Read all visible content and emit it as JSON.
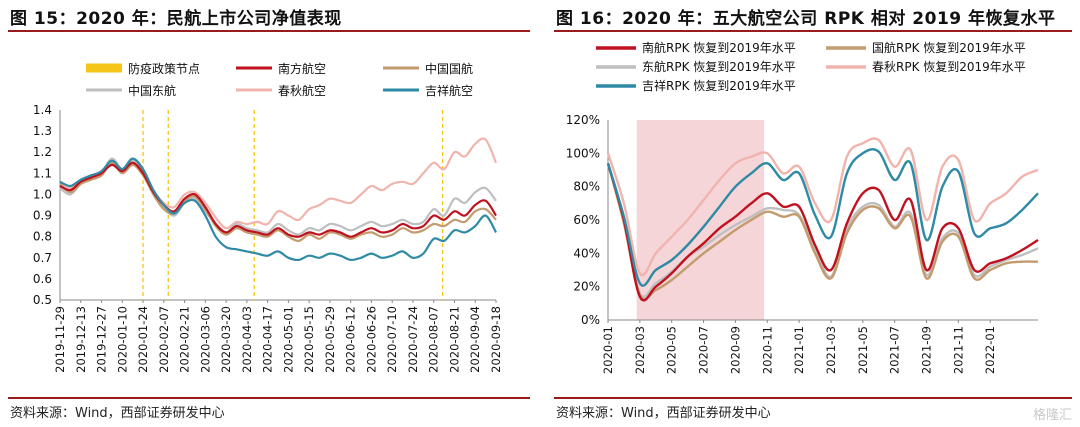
{
  "left": {
    "title": "图 15：2020 年：民航上市公司净值表现",
    "source": "资料来源：Wind，西部证券研发中心"
  },
  "right": {
    "title": "图 16：2020 年：五大航空公司 RPK 相对 2019 年恢复水平",
    "source": "资料来源：Wind，西部证券研发中心"
  },
  "watermark": "格隆汇",
  "chart_data": [
    {
      "type": "line",
      "ylim": [
        0.5,
        1.4
      ],
      "yticks": [
        "0.5",
        "0.6",
        "0.7",
        "0.8",
        "0.9",
        "1.0",
        "1.1",
        "1.2",
        "1.3",
        "1.4"
      ],
      "xticks": [
        "2019-11-29",
        "2019-12-13",
        "2019-12-27",
        "2020-01-10",
        "2020-01-24",
        "2020-02-07",
        "2020-02-21",
        "2020-03-06",
        "2020-03-20",
        "2020-04-03",
        "2020-04-17",
        "2020-05-01",
        "2020-05-15",
        "2020-05-29",
        "2020-06-12",
        "2020-06-26",
        "2020-07-10",
        "2020-07-24",
        "2020-08-07",
        "2020-08-21",
        "2020-09-04",
        "2020-09-18"
      ],
      "legend_position": "top",
      "epidemic_policy_label": "防疫政策节点",
      "epidemic_policy_color": "#f5c518",
      "epidemic_policy_nodes": [
        "2020-01-24",
        "2020-02-10",
        "2020-04-08",
        "2020-08-13"
      ],
      "series": [
        {
          "name": "南方航空",
          "color": "#c0111f",
          "values": [
            1.04,
            1.02,
            1.06,
            1.08,
            1.1,
            1.14,
            1.11,
            1.15,
            1.1,
            1.01,
            0.95,
            0.92,
            0.98,
            1.0,
            0.94,
            0.86,
            0.82,
            0.85,
            0.83,
            0.82,
            0.81,
            0.84,
            0.81,
            0.8,
            0.82,
            0.81,
            0.83,
            0.82,
            0.8,
            0.82,
            0.84,
            0.82,
            0.83,
            0.86,
            0.84,
            0.85,
            0.9,
            0.88,
            0.92,
            0.9,
            0.95,
            0.97,
            0.9
          ]
        },
        {
          "name": "中国国航",
          "color": "#c39b6e",
          "values": [
            1.05,
            1.01,
            1.05,
            1.07,
            1.09,
            1.15,
            1.1,
            1.14,
            1.09,
            1.0,
            0.93,
            0.91,
            0.97,
            0.99,
            0.93,
            0.85,
            0.81,
            0.84,
            0.82,
            0.81,
            0.8,
            0.83,
            0.8,
            0.78,
            0.81,
            0.79,
            0.82,
            0.81,
            0.79,
            0.81,
            0.82,
            0.8,
            0.81,
            0.84,
            0.82,
            0.83,
            0.86,
            0.85,
            0.88,
            0.87,
            0.92,
            0.93,
            0.88
          ]
        },
        {
          "name": "中国东航",
          "color": "#bfbfbf",
          "values": [
            1.03,
            1.0,
            1.05,
            1.08,
            1.1,
            1.17,
            1.12,
            1.16,
            1.1,
            1.02,
            0.94,
            0.9,
            0.96,
            0.98,
            0.92,
            0.86,
            0.82,
            0.86,
            0.84,
            0.83,
            0.82,
            0.86,
            0.83,
            0.81,
            0.84,
            0.83,
            0.86,
            0.85,
            0.83,
            0.85,
            0.87,
            0.85,
            0.86,
            0.88,
            0.86,
            0.87,
            0.93,
            0.9,
            0.98,
            0.96,
            1.01,
            1.03,
            0.97
          ]
        },
        {
          "name": "春秋航空",
          "color": "#f0b4ad",
          "values": [
            1.05,
            1.03,
            1.07,
            1.09,
            1.11,
            1.16,
            1.12,
            1.16,
            1.11,
            1.02,
            0.96,
            0.94,
            1.0,
            1.01,
            0.96,
            0.89,
            0.84,
            0.87,
            0.86,
            0.87,
            0.86,
            0.92,
            0.9,
            0.88,
            0.93,
            0.95,
            0.98,
            0.97,
            0.96,
            1.0,
            1.04,
            1.02,
            1.05,
            1.06,
            1.05,
            1.1,
            1.15,
            1.12,
            1.2,
            1.18,
            1.24,
            1.26,
            1.15
          ]
        },
        {
          "name": "吉祥航空",
          "color": "#2f8aa5",
          "values": [
            1.06,
            1.04,
            1.07,
            1.09,
            1.11,
            1.16,
            1.12,
            1.17,
            1.12,
            1.02,
            0.95,
            0.91,
            0.96,
            0.97,
            0.9,
            0.8,
            0.75,
            0.74,
            0.73,
            0.72,
            0.71,
            0.73,
            0.7,
            0.69,
            0.71,
            0.7,
            0.72,
            0.71,
            0.69,
            0.7,
            0.72,
            0.7,
            0.71,
            0.73,
            0.7,
            0.72,
            0.79,
            0.78,
            0.83,
            0.82,
            0.85,
            0.9,
            0.82
          ]
        }
      ]
    },
    {
      "type": "line",
      "ylim": [
        0,
        120
      ],
      "yticks": [
        "0%",
        "20%",
        "40%",
        "60%",
        "80%",
        "100%",
        "120%"
      ],
      "xticks": [
        "2020-01",
        "2020-03",
        "2020-05",
        "2020-07",
        "2020-09",
        "2020-11",
        "2021-01",
        "2021-03",
        "2021-05",
        "2021-07",
        "2021-09",
        "2021-11",
        "2022-01"
      ],
      "x_months_total": 27,
      "shade_months": [
        1.8,
        9.8
      ],
      "shade_color": "#f5d5d8",
      "legend_position": "top",
      "series": [
        {
          "name": "南航RPK 恢复到2019年水平",
          "color": "#c0111f",
          "values": [
            94,
            60,
            14,
            20,
            28,
            38,
            46,
            55,
            62,
            70,
            76,
            68,
            68,
            45,
            30,
            58,
            76,
            78,
            60,
            72,
            30,
            55,
            55,
            30,
            34,
            37,
            42,
            48
          ]
        },
        {
          "name": "国航RPK 恢复到2019年水平",
          "color": "#c39b6e",
          "values": [
            94,
            58,
            15,
            18,
            24,
            32,
            40,
            47,
            54,
            60,
            65,
            62,
            62,
            40,
            25,
            52,
            66,
            67,
            55,
            62,
            25,
            47,
            50,
            25,
            30,
            34,
            35,
            35
          ]
        },
        {
          "name": "东航RPK 恢复到2019年水平",
          "color": "#bfbfbf",
          "values": [
            94,
            60,
            16,
            22,
            29,
            38,
            44,
            51,
            57,
            62,
            67,
            66,
            63,
            43,
            26,
            55,
            68,
            69,
            56,
            64,
            27,
            49,
            52,
            27,
            32,
            36,
            39,
            43
          ]
        },
        {
          "name": "春秋RPK 恢复到2019年水平",
          "color": "#f0b4ad",
          "values": [
            100,
            70,
            28,
            40,
            50,
            60,
            72,
            84,
            94,
            98,
            100,
            88,
            92,
            70,
            60,
            98,
            106,
            108,
            92,
            102,
            60,
            92,
            96,
            60,
            70,
            76,
            86,
            90
          ]
        },
        {
          "name": "吉祥RPK 恢复到2019年水平",
          "color": "#2f8aa5",
          "values": [
            94,
            62,
            22,
            30,
            36,
            45,
            56,
            68,
            80,
            88,
            94,
            84,
            88,
            63,
            50,
            88,
            100,
            101,
            84,
            94,
            48,
            80,
            89,
            52,
            55,
            58,
            66,
            76
          ]
        }
      ]
    }
  ]
}
